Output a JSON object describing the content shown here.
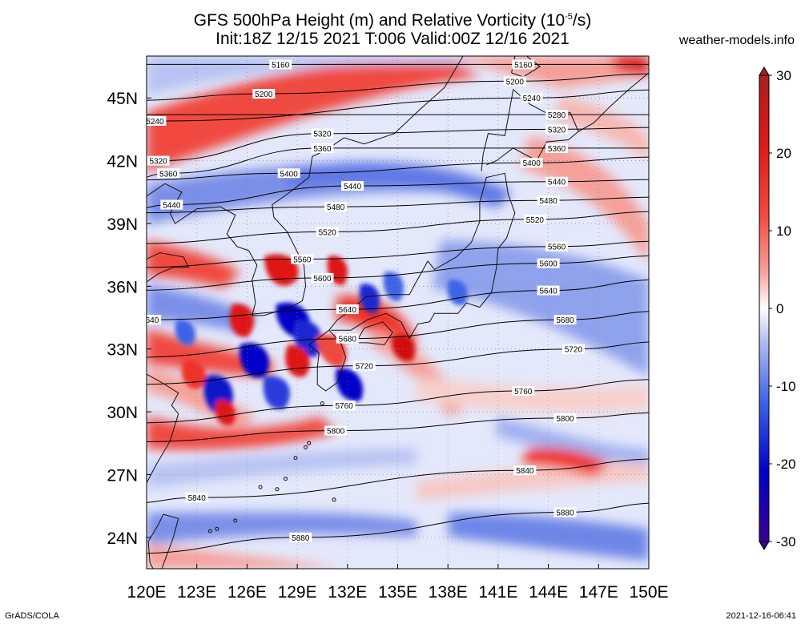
{
  "title": {
    "line1_prefix": "GFS 500hPa Height (m) and Relative Vorticity (10",
    "line1_exp": "-5",
    "line1_suffix": "/s)",
    "line2": "Init:18Z 12/15 2021 T:006 Valid:00Z 12/16 2021"
  },
  "credit": "weather-models.info",
  "footer": {
    "left": "GrADS/COLA",
    "right": "2021-12-16-06:41"
  },
  "axes": {
    "lon_labels": [
      "120E",
      "123E",
      "126E",
      "129E",
      "132E",
      "135E",
      "138E",
      "141E",
      "144E",
      "147E",
      "150E"
    ],
    "lat_labels": [
      "24N",
      "27N",
      "30N",
      "33N",
      "36N",
      "39N",
      "42N",
      "45N"
    ]
  },
  "colorbar": {
    "labels": [
      "30",
      "20",
      "10",
      "0",
      "-10",
      "-20",
      "-30"
    ],
    "range": [
      -30,
      30
    ],
    "colors": [
      "#3a0090",
      "#0000c8",
      "#3c64e6",
      "#96a5f0",
      "#d2dcfa",
      "#ffffff",
      "#fadcd7",
      "#f59691",
      "#f03228",
      "#d20f0f",
      "#aa1e1e"
    ]
  },
  "map_data": {
    "region": {
      "lon": [
        120,
        150
      ],
      "lat": [
        22.5,
        47
      ]
    },
    "contours": [
      {
        "label": "5160",
        "label_positions": [
          [
            128,
            46.6
          ],
          [
            142.5,
            46.6
          ]
        ]
      },
      {
        "label": "5200",
        "label_positions": [
          [
            127,
            45.2
          ],
          [
            142,
            45.8
          ]
        ]
      },
      {
        "label": "5240",
        "label_positions": [
          [
            120.5,
            43.9
          ],
          [
            143,
            45.0
          ]
        ]
      },
      {
        "label": "5280",
        "label_positions": [
          [
            144.5,
            44.2
          ]
        ]
      },
      {
        "label": "5320",
        "label_positions": [
          [
            120.7,
            42.0
          ],
          [
            130.5,
            43.3
          ],
          [
            144.5,
            43.5
          ]
        ]
      },
      {
        "label": "5360",
        "label_positions": [
          [
            121.3,
            41.4
          ],
          [
            130.5,
            42.6
          ],
          [
            144.5,
            42.6
          ]
        ]
      },
      {
        "label": "5400",
        "label_positions": [
          [
            128.5,
            41.4
          ],
          [
            143,
            41.9
          ]
        ]
      },
      {
        "label": "5440",
        "label_positions": [
          [
            121.5,
            39.9
          ],
          [
            132.3,
            40.8
          ],
          [
            144.5,
            41.0
          ]
        ]
      },
      {
        "label": "5480",
        "label_positions": [
          [
            131.3,
            39.8
          ],
          [
            144,
            40.1
          ]
        ]
      },
      {
        "label": "5520",
        "label_positions": [
          [
            130.8,
            38.6
          ],
          [
            143.2,
            39.2
          ]
        ]
      },
      {
        "label": "5560",
        "label_positions": [
          [
            129.3,
            37.3
          ],
          [
            144.5,
            37.9
          ]
        ]
      },
      {
        "label": "5600",
        "label_positions": [
          [
            130.5,
            36.4
          ],
          [
            144,
            37.1
          ]
        ]
      },
      {
        "label": "5640",
        "label_positions": [
          [
            120.2,
            34.4
          ],
          [
            132,
            34.9
          ],
          [
            144,
            35.8
          ]
        ]
      },
      {
        "label": "5680",
        "label_positions": [
          [
            132,
            33.5
          ],
          [
            145,
            34.4
          ]
        ]
      },
      {
        "label": "5720",
        "label_positions": [
          [
            133,
            32.2
          ],
          [
            145.5,
            33.0
          ]
        ]
      },
      {
        "label": "5760",
        "label_positions": [
          [
            131.8,
            30.3
          ],
          [
            142.5,
            31.0
          ]
        ]
      },
      {
        "label": "5800",
        "label_positions": [
          [
            131.3,
            29.1
          ],
          [
            145,
            29.7
          ]
        ]
      },
      {
        "label": "5840",
        "label_positions": [
          [
            123,
            25.9
          ],
          [
            142.6,
            27.2
          ]
        ]
      },
      {
        "label": "5880",
        "label_positions": [
          [
            129.2,
            24.0
          ],
          [
            145,
            25.2
          ]
        ]
      }
    ]
  }
}
